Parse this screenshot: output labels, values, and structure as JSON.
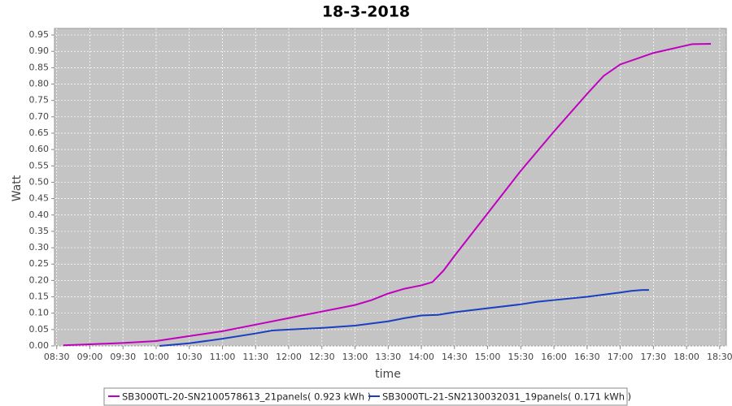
{
  "chart_data": {
    "type": "line",
    "title": "18-3-2018",
    "x_label": "time",
    "y_label": "Watt",
    "xlim": [
      508,
      1116
    ],
    "ylim": [
      0,
      0.97
    ],
    "xticks": [
      {
        "value": 510,
        "label": "08:30"
      },
      {
        "value": 540,
        "label": "09:00"
      },
      {
        "value": 570,
        "label": "09:30"
      },
      {
        "value": 600,
        "label": "10:00"
      },
      {
        "value": 630,
        "label": "10:30"
      },
      {
        "value": 660,
        "label": "11:00"
      },
      {
        "value": 690,
        "label": "11:30"
      },
      {
        "value": 720,
        "label": "12:00"
      },
      {
        "value": 750,
        "label": "12:30"
      },
      {
        "value": 780,
        "label": "13:00"
      },
      {
        "value": 810,
        "label": "13:30"
      },
      {
        "value": 840,
        "label": "14:00"
      },
      {
        "value": 870,
        "label": "14:30"
      },
      {
        "value": 900,
        "label": "15:00"
      },
      {
        "value": 930,
        "label": "15:30"
      },
      {
        "value": 960,
        "label": "16:00"
      },
      {
        "value": 990,
        "label": "16:30"
      },
      {
        "value": 1020,
        "label": "17:00"
      },
      {
        "value": 1050,
        "label": "17:30"
      },
      {
        "value": 1080,
        "label": "18:00"
      },
      {
        "value": 1110,
        "label": "18:30"
      }
    ],
    "yticks": [
      {
        "value": 0,
        "label": "0.00"
      },
      {
        "value": 0.05,
        "label": "0.05"
      },
      {
        "value": 0.1,
        "label": "0.10"
      },
      {
        "value": 0.15,
        "label": "0.15"
      },
      {
        "value": 0.2,
        "label": "0.20"
      },
      {
        "value": 0.25,
        "label": "0.25"
      },
      {
        "value": 0.3,
        "label": "0.30"
      },
      {
        "value": 0.35,
        "label": "0.35"
      },
      {
        "value": 0.4,
        "label": "0.40"
      },
      {
        "value": 0.45,
        "label": "0.45"
      },
      {
        "value": 0.5,
        "label": "0.50"
      },
      {
        "value": 0.55,
        "label": "0.55"
      },
      {
        "value": 0.6,
        "label": "0.60"
      },
      {
        "value": 0.65,
        "label": "0.65"
      },
      {
        "value": 0.7,
        "label": "0.70"
      },
      {
        "value": 0.75,
        "label": "0.75"
      },
      {
        "value": 0.8,
        "label": "0.80"
      },
      {
        "value": 0.85,
        "label": "0.85"
      },
      {
        "value": 0.9,
        "label": "0.90"
      },
      {
        "value": 0.95,
        "label": "0.95"
      }
    ],
    "grid": true,
    "series": [
      {
        "name": "SB3000TL-20-SN2100578613_21panels( 0.923 kWh )",
        "color": "#c000c0",
        "x": [
          516,
          540,
          570,
          600,
          630,
          660,
          690,
          720,
          750,
          780,
          795,
          810,
          825,
          840,
          850,
          860,
          870,
          900,
          930,
          960,
          990,
          1005,
          1020,
          1050,
          1080,
          1085,
          1102
        ],
        "values": [
          0.002,
          0.005,
          0.009,
          0.015,
          0.03,
          0.045,
          0.065,
          0.085,
          0.105,
          0.125,
          0.14,
          0.16,
          0.175,
          0.185,
          0.195,
          0.23,
          0.275,
          0.405,
          0.535,
          0.655,
          0.77,
          0.825,
          0.86,
          0.895,
          0.918,
          0.922,
          0.923
        ]
      },
      {
        "name": "SB3000TL-21-SN2130032031_19panels( 0.171 kWh )",
        "color": "#1a3fc0",
        "x": [
          603,
          630,
          660,
          690,
          705,
          720,
          750,
          780,
          810,
          825,
          840,
          855,
          870,
          900,
          930,
          945,
          960,
          990,
          1020,
          1030,
          1040,
          1046
        ],
        "values": [
          0.0,
          0.008,
          0.022,
          0.038,
          0.047,
          0.05,
          0.055,
          0.062,
          0.075,
          0.085,
          0.093,
          0.095,
          0.103,
          0.115,
          0.127,
          0.135,
          0.14,
          0.15,
          0.163,
          0.168,
          0.171,
          0.171
        ]
      }
    ]
  }
}
